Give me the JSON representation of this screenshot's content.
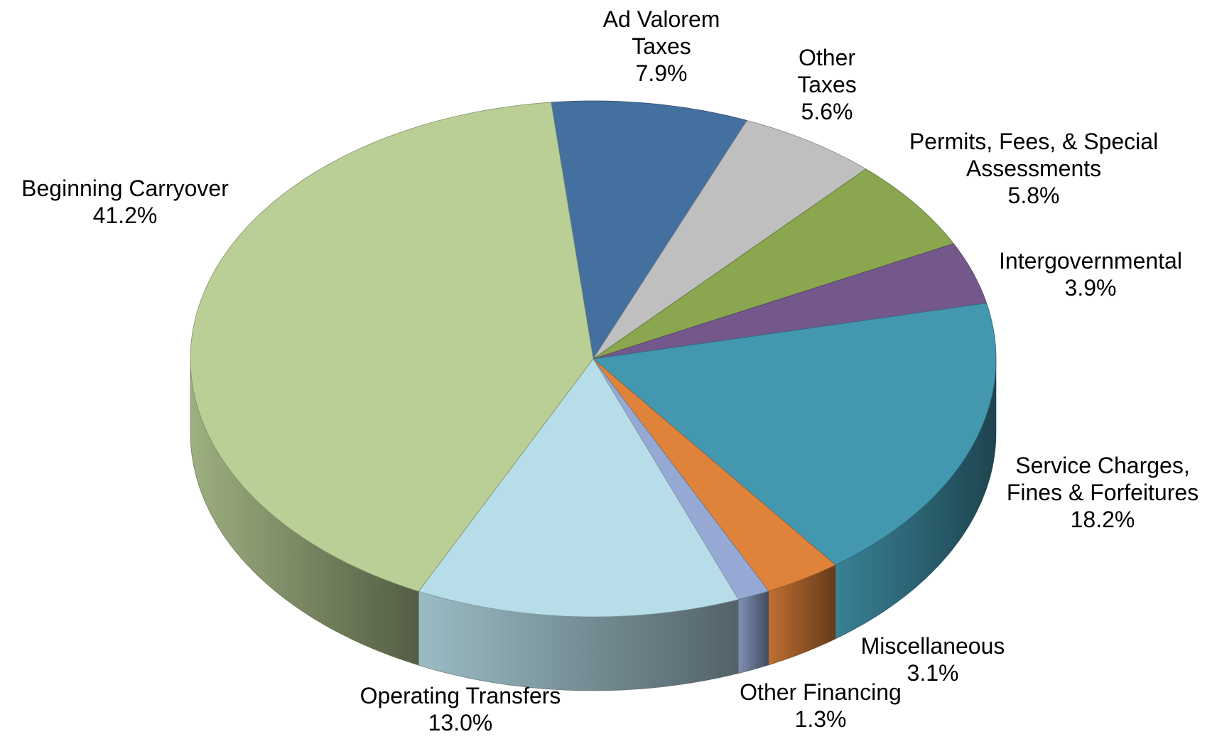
{
  "chart_data": {
    "type": "pie3d",
    "categories": [
      "Ad Valorem Taxes",
      "Other Taxes",
      "Permits, Fees, & Special Assessments",
      "Intergovernmental",
      "Service Charges, Fines & Forfeitures",
      "Miscellaneous",
      "Other Financing",
      "Operating Transfers",
      "Beginning Carryover"
    ],
    "values": [
      7.9,
      5.6,
      5.8,
      3.9,
      18.2,
      3.1,
      1.3,
      13.0,
      41.2
    ],
    "value_labels": [
      "7.9%",
      "5.6%",
      "5.8%",
      "3.9%",
      "18.2%",
      "3.1%",
      "1.3%",
      "13.0%",
      "41.2%"
    ],
    "colors": [
      "#4470a0",
      "#bfbfbf",
      "#8aa64e",
      "#74588c",
      "#4398b0",
      "#e0833a",
      "#95a9d4",
      "#b7dde8",
      "#b9cf96"
    ]
  }
}
